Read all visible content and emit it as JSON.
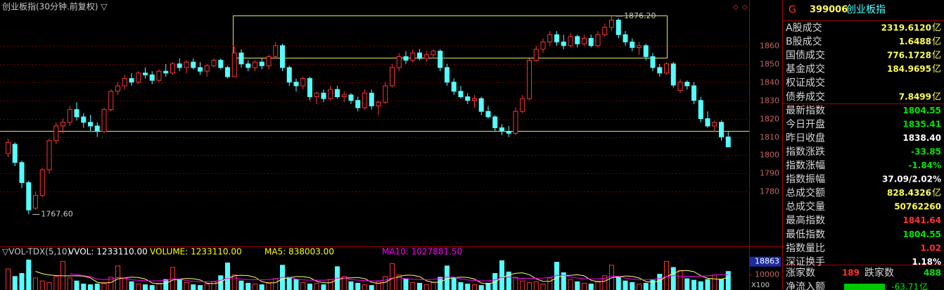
{
  "header": {
    "title": "创业板指(30分钟.前复权) ▽"
  },
  "chart_data": [
    {
      "type": "candlestick",
      "open": [
        1801,
        1806,
        1796,
        1785,
        1771,
        1778,
        1792,
        1808,
        1816,
        1818,
        1825,
        1821,
        1818,
        1816,
        1813,
        1825,
        1835,
        1838,
        1842,
        1840,
        1845,
        1844,
        1841,
        1846,
        1845,
        1850,
        1848,
        1851,
        1848,
        1846,
        1849,
        1852,
        1848,
        1843,
        1856,
        1850,
        1848,
        1851,
        1849,
        1854,
        1860,
        1848,
        1840,
        1838,
        1842,
        1832,
        1834,
        1831,
        1836,
        1832,
        1833,
        1830,
        1826,
        1834,
        1827,
        1829,
        1838,
        1848,
        1854,
        1852,
        1856,
        1853,
        1855,
        1857,
        1848,
        1840,
        1835,
        1832,
        1830,
        1831,
        1824,
        1821,
        1815,
        1813,
        1812,
        1824,
        1831,
        1852,
        1858,
        1862,
        1866,
        1862,
        1860,
        1865,
        1861,
        1864,
        1860,
        1866,
        1870,
        1874,
        1866,
        1862,
        1859,
        1860,
        1854,
        1848,
        1845,
        1850,
        1835.41,
        1840,
        1838,
        1830,
        1820,
        1816,
        1818,
        1810
      ],
      "high": [
        1809,
        1807,
        1797,
        1786,
        1780,
        1793,
        1809,
        1818,
        1820,
        1827,
        1829,
        1823,
        1822,
        1818,
        1826,
        1836,
        1840,
        1844,
        1845,
        1846,
        1848,
        1846,
        1847,
        1850,
        1851,
        1853,
        1852,
        1853,
        1851,
        1850,
        1853,
        1853,
        1849,
        1860,
        1858,
        1852,
        1852,
        1853,
        1855,
        1862,
        1861,
        1849,
        1842,
        1843,
        1843,
        1835,
        1836,
        1838,
        1838,
        1835,
        1834,
        1832,
        1836,
        1836,
        1830,
        1840,
        1850,
        1856,
        1857,
        1858,
        1858,
        1857,
        1858,
        1858,
        1850,
        1842,
        1838,
        1834,
        1833,
        1832,
        1827,
        1822,
        1817,
        1816,
        1826,
        1833,
        1853,
        1860,
        1864,
        1868,
        1868,
        1866,
        1867,
        1866,
        1866,
        1866,
        1868,
        1872,
        1876.2,
        1875,
        1868,
        1864,
        1862,
        1861,
        1856,
        1850,
        1851,
        1851,
        1841.64,
        1841,
        1840,
        1832,
        1824,
        1819,
        1819,
        1813
      ],
      "low": [
        1799,
        1794,
        1782,
        1767.6,
        1770,
        1777,
        1790,
        1806,
        1812,
        1816,
        1819,
        1815,
        1813,
        1810,
        1812,
        1824,
        1833,
        1836,
        1838,
        1839,
        1842,
        1839,
        1840,
        1843,
        1844,
        1846,
        1845,
        1847,
        1844,
        1843,
        1848,
        1847,
        1842,
        1843,
        1848,
        1846,
        1846,
        1847,
        1847,
        1853,
        1846,
        1838,
        1835,
        1836,
        1830,
        1828,
        1829,
        1830,
        1831,
        1829,
        1828,
        1824,
        1825,
        1825,
        1822,
        1828,
        1837,
        1846,
        1850,
        1851,
        1852,
        1851,
        1853,
        1846,
        1838,
        1833,
        1831,
        1828,
        1826,
        1822,
        1820,
        1813,
        1811,
        1810,
        1811,
        1823,
        1830,
        1851,
        1856,
        1860,
        1860,
        1858,
        1859,
        1859,
        1860,
        1859,
        1859,
        1865,
        1868,
        1864,
        1860,
        1857,
        1855,
        1852,
        1846,
        1843,
        1844,
        1837,
        1834,
        1836,
        1828,
        1818,
        1815,
        1813,
        1808,
        1804.55
      ],
      "close": [
        1807,
        1796,
        1785,
        1770,
        1778,
        1792,
        1808,
        1816,
        1818,
        1825,
        1821,
        1818,
        1816,
        1813,
        1825,
        1835,
        1838,
        1842,
        1840,
        1845,
        1844,
        1841,
        1846,
        1845,
        1850,
        1848,
        1851,
        1848,
        1846,
        1849,
        1852,
        1848,
        1843,
        1856,
        1850,
        1848,
        1851,
        1849,
        1854,
        1860,
        1848,
        1840,
        1838,
        1842,
        1832,
        1834,
        1831,
        1836,
        1832,
        1833,
        1830,
        1826,
        1834,
        1827,
        1829,
        1838,
        1848,
        1854,
        1852,
        1856,
        1853,
        1855,
        1857,
        1848,
        1840,
        1835,
        1832,
        1830,
        1831,
        1824,
        1821,
        1815,
        1813,
        1812,
        1824,
        1831,
        1852,
        1858,
        1862,
        1866,
        1862,
        1860,
        1865,
        1861,
        1864,
        1860,
        1866,
        1870,
        1874,
        1866,
        1862,
        1859,
        1860,
        1854,
        1848,
        1845,
        1850,
        1838.4,
        1840,
        1838,
        1830,
        1820,
        1816,
        1818,
        1810,
        1804.55
      ],
      "up_color": "#ff3232",
      "down_color": "#54ffff",
      "ylim": [
        1752,
        1885
      ],
      "yticks": [
        1780,
        1790,
        1800,
        1810,
        1820,
        1830,
        1840,
        1850,
        1860
      ],
      "grid": true,
      "annotations": [
        {
          "value": 1876.2,
          "label": "1876.20"
        },
        {
          "value": 1767.6,
          "label": "1767.60"
        }
      ]
    },
    {
      "type": "bar",
      "title": "▽VOL-TDX(5,10)",
      "indicators": [
        {
          "text": "VVOL: 1233110.00",
          "color": "#ffffff"
        },
        {
          "text": "VOLUME: 1233110.00",
          "color": "#ffff00"
        },
        {
          "text": "MA5: 838003.00",
          "color": "#ffff00"
        },
        {
          "text": "MA10: 1027881.50",
          "color": "#ff00ff"
        }
      ],
      "ma": [
        {
          "period": 5,
          "color": "#ffff66"
        },
        {
          "period": 10,
          "color": "#ff00ff"
        }
      ],
      "values": [
        14000,
        9000,
        11000,
        20000,
        8000,
        6000,
        5000,
        9000,
        19000,
        8000,
        6000,
        4000,
        3500,
        4000,
        5000,
        8500,
        16000,
        7500,
        5500,
        4000,
        3500,
        3000,
        4500,
        7000,
        15000,
        7000,
        5000,
        3500,
        3000,
        4000,
        5500,
        9500,
        18000,
        10000,
        6000,
        4500,
        4000,
        3500,
        5000,
        7500,
        16500,
        8500,
        7000,
        5000,
        4000,
        4500,
        3500,
        7000,
        15500,
        9000,
        5500,
        4500,
        3500,
        3000,
        5500,
        9000,
        17500,
        10000,
        7500,
        5000,
        4500,
        3500,
        5000,
        8500,
        16000,
        8000,
        5000,
        4000,
        3500,
        3000,
        4500,
        11000,
        19500,
        12000,
        8500,
        6000,
        5000,
        5500,
        4000,
        8000,
        18500,
        11500,
        7000,
        5500,
        4500,
        4000,
        6000,
        9500,
        16500,
        8500,
        6000,
        5000,
        4000,
        4500,
        6500,
        10500,
        19000,
        15000,
        12888,
        7500,
        6500,
        5500,
        7000,
        10000,
        7069.05,
        12331.1
      ],
      "ylim": [
        0,
        22000
      ],
      "yticks": [
        10000,
        18863
      ],
      "unit_label": "X100"
    }
  ],
  "quote_panel": {
    "code_letter": "G",
    "code": "399006",
    "name": "创业板指",
    "rows": [
      {
        "label": "A股成交",
        "value": "2319.6120",
        "unit": "亿",
        "color": "#ffff54"
      },
      {
        "label": "B股成交",
        "value": "1.6488",
        "unit": "亿",
        "color": "#ffff54"
      },
      {
        "label": "国债成交",
        "value": "776.1728",
        "unit": "亿",
        "color": "#ffff54"
      },
      {
        "label": "基金成交",
        "value": "184.9695",
        "unit": "亿",
        "color": "#ffff54"
      },
      {
        "label": "权证成交"
      },
      {
        "label": "债券成交",
        "value": "7.8499",
        "unit": "亿",
        "color": "#ffff54"
      },
      {
        "label": "最新指数",
        "value": "1804.55",
        "color": "#00e600"
      },
      {
        "label": "今日开盘",
        "value": "1835.41",
        "color": "#00e600"
      },
      {
        "label": "昨日收盘",
        "value": "1838.40",
        "color": "#ffffff"
      },
      {
        "label": "指数涨跌",
        "value": "-33.85",
        "color": "#00e600"
      },
      {
        "label": "指数涨幅",
        "value": "-1.84%",
        "color": "#00e600"
      },
      {
        "label": "指数振幅",
        "value": "37.09/2.02%",
        "color": "#ffffff"
      },
      {
        "label": "总成交额",
        "value": "828.4326",
        "unit": "亿",
        "color": "#ffff54"
      },
      {
        "label": "总成交量",
        "value": "50762260",
        "color": "#ffff54"
      },
      {
        "label": "最高指数",
        "value": "1841.64",
        "color": "#ff3232"
      },
      {
        "label": "最低指数",
        "value": "1804.55",
        "color": "#00e600"
      },
      {
        "label": "指数量比",
        "value": "1.02",
        "color": "#ff3232"
      },
      {
        "label": "深证换手",
        "value": "1.18%",
        "color": "#ffffff"
      }
    ],
    "advance_label": "涨家数",
    "advance": "189",
    "decline_label": "跌家数",
    "decline": "488",
    "net_inflow_label": "净流入额",
    "net_inflow": "-63.71",
    "net_inflow_unit": "亿"
  }
}
